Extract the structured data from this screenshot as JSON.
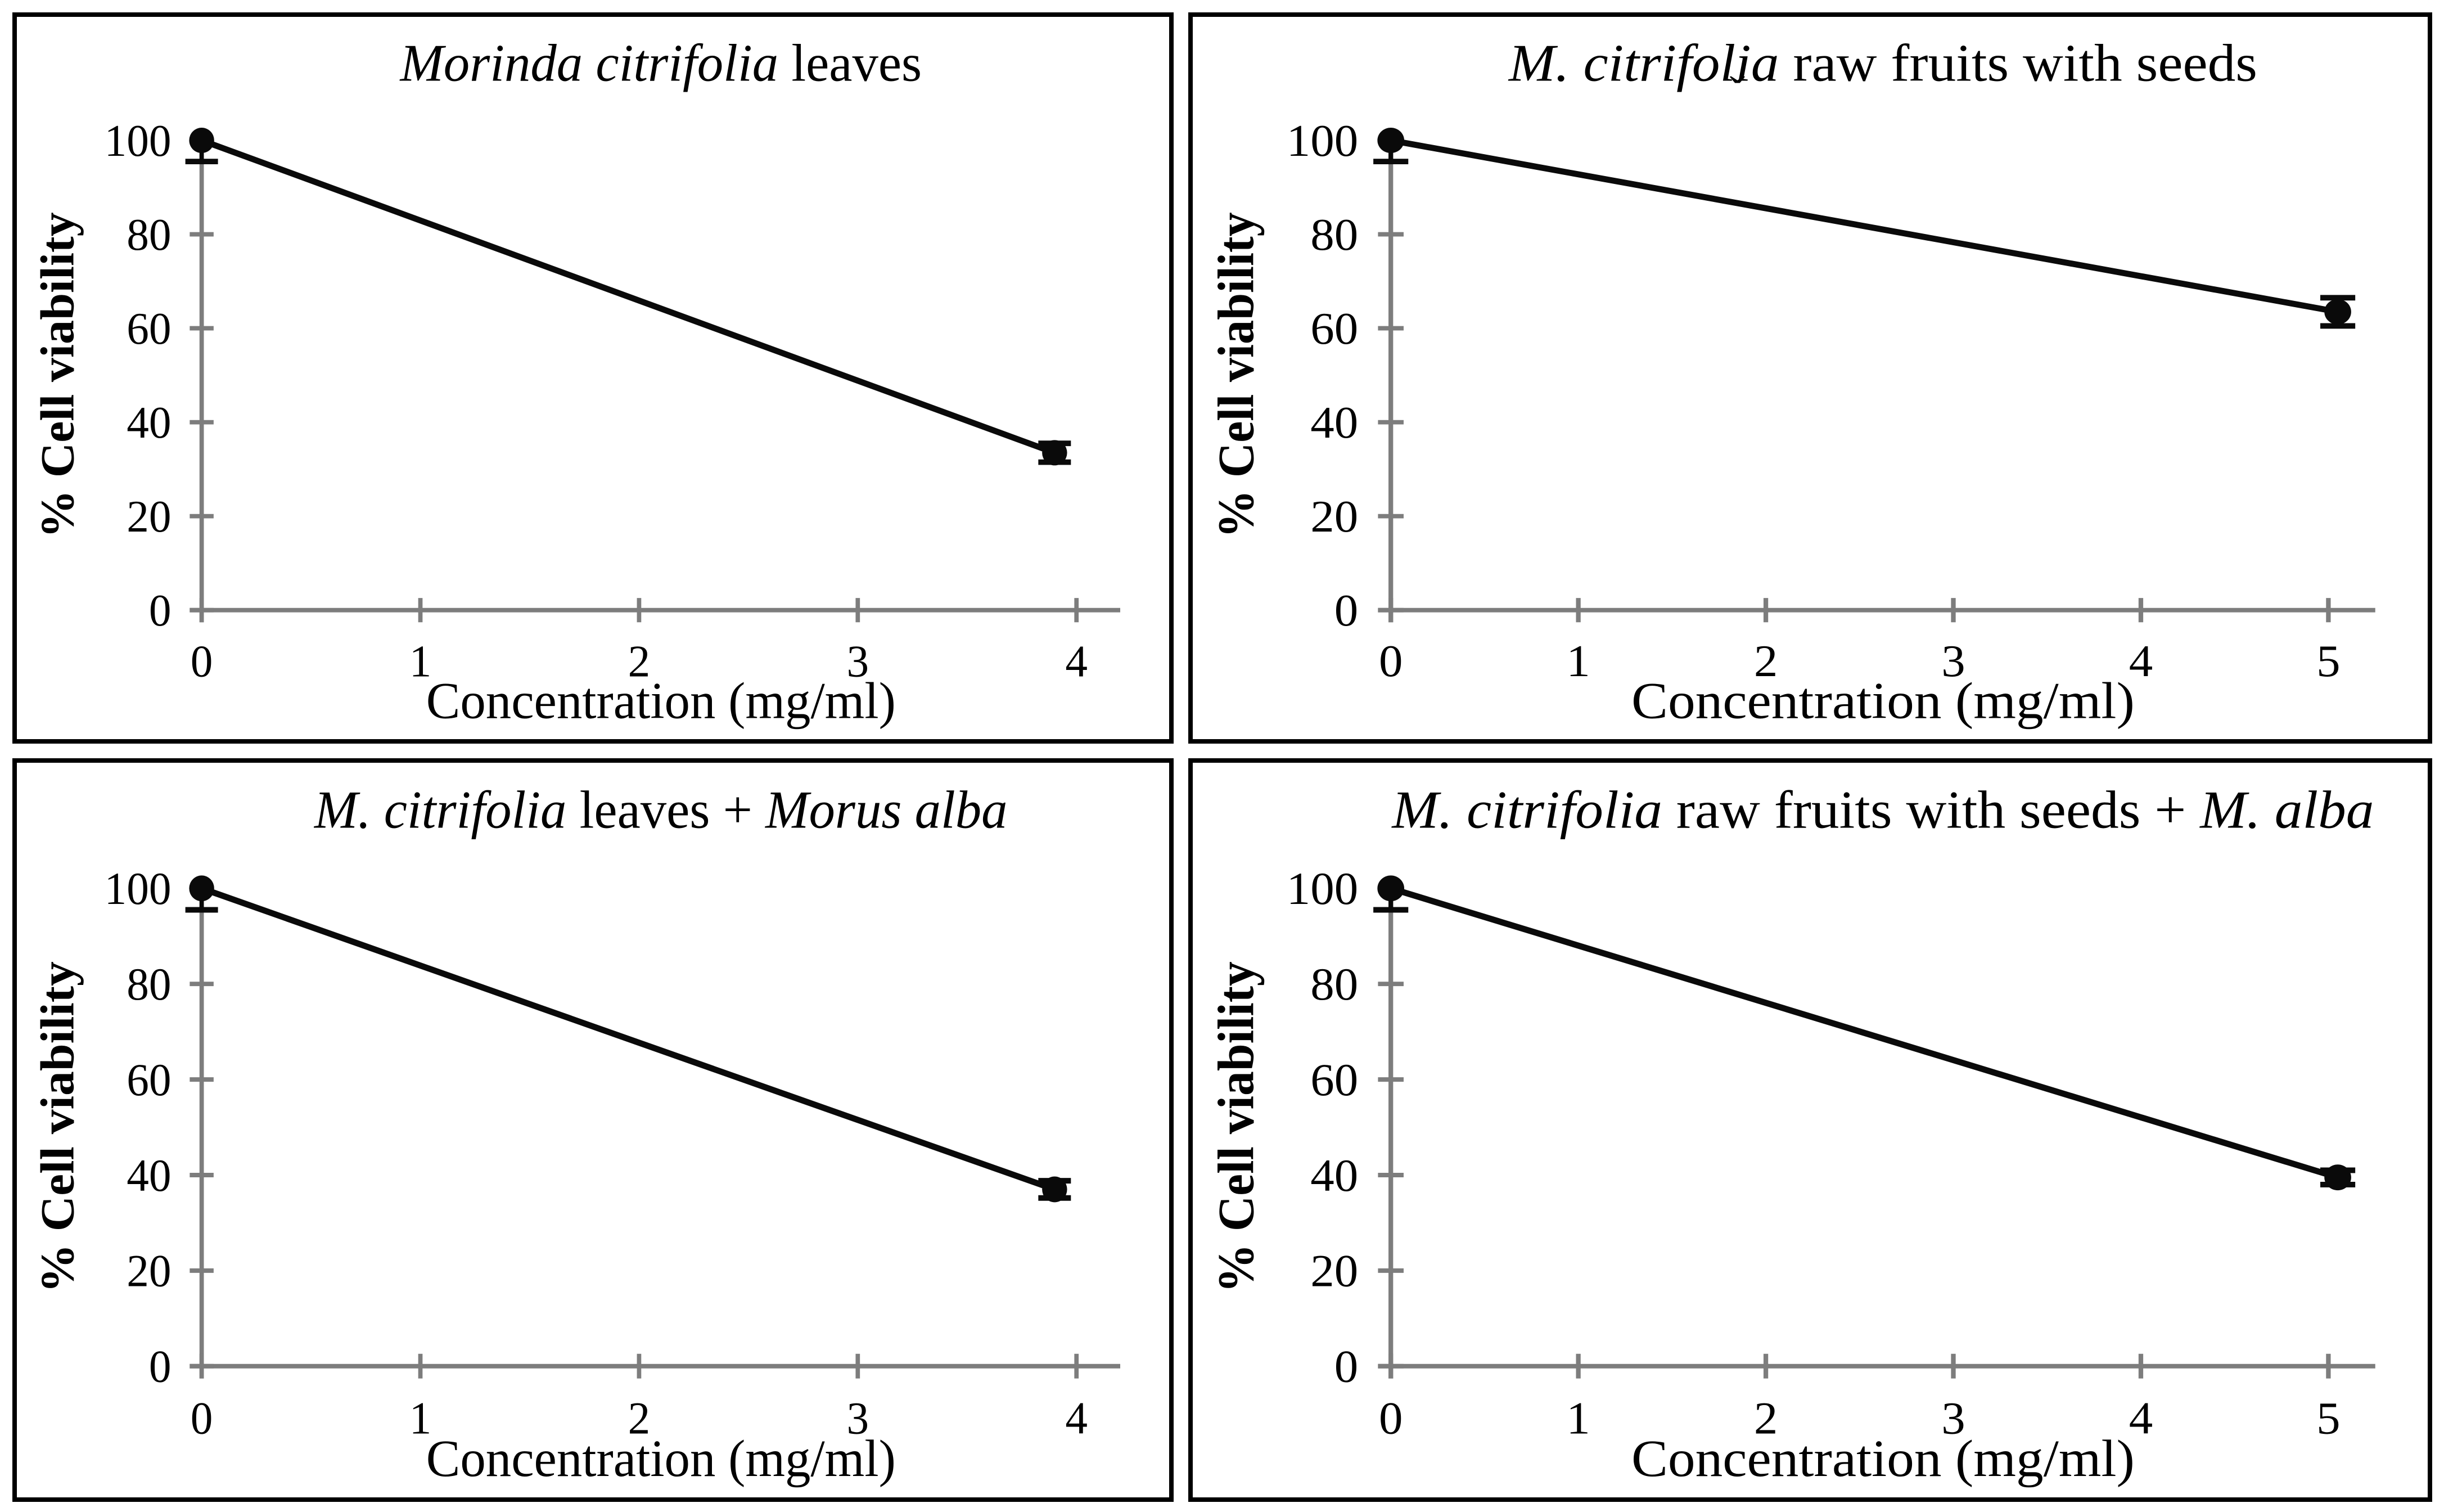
{
  "figure": {
    "background": "#ffffff",
    "panel_border_color": "#000000",
    "axis_color": "#7d7d7d",
    "data_color": "#0a0a0a",
    "text_color": "#000000",
    "layout": "2x2-grid"
  },
  "chart_data": [
    {
      "type": "line",
      "title_parts": [
        {
          "text": "Morinda citrifolia",
          "italic": true
        },
        {
          "text": " leaves",
          "italic": false
        }
      ],
      "xlabel": "Concentration (mg/ml)",
      "ylabel": "% Cell viability",
      "xlim": [
        0,
        4.2
      ],
      "ylim": [
        0,
        100
      ],
      "xticks": [
        0,
        1,
        2,
        3,
        4
      ],
      "yticks": [
        0,
        20,
        40,
        60,
        80,
        100
      ],
      "marker": "filled-circle",
      "grid": false,
      "legend": null,
      "annotations": [],
      "series": [
        {
          "name": "cell-viability",
          "points": [
            {
              "x": 0,
              "y": 100,
              "err_up": 0,
              "err_down": 4.5
            },
            {
              "x": 3.9,
              "y": 33.5,
              "err_up": 2,
              "err_down": 2
            }
          ]
        }
      ]
    },
    {
      "type": "line",
      "title_parts": [
        {
          "text": "M. citrifolia",
          "italic": true
        },
        {
          "text": " raw fruits with seeds",
          "italic": false
        }
      ],
      "xlabel": "Concentration (mg/ml)",
      "ylabel": "% Cell viability",
      "xlim": [
        0,
        5.25
      ],
      "ylim": [
        0,
        100
      ],
      "xticks": [
        0,
        1,
        2,
        3,
        4,
        5
      ],
      "yticks": [
        0,
        20,
        40,
        60,
        80,
        100
      ],
      "marker": "filled-circle",
      "grid": false,
      "legend": null,
      "annotations": [
        {
          "text": "ˇ",
          "fx": 0.441,
          "fy": 0.125
        }
      ],
      "series": [
        {
          "name": "cell-viability",
          "points": [
            {
              "x": 0,
              "y": 100,
              "err_up": 0,
              "err_down": 4.5
            },
            {
              "x": 5.05,
              "y": 63.5,
              "err_up": 3,
              "err_down": 3
            }
          ]
        }
      ]
    },
    {
      "type": "line",
      "title_parts": [
        {
          "text": "M. citrifolia",
          "italic": true
        },
        {
          "text": " leaves + ",
          "italic": false
        },
        {
          "text": "Morus alba",
          "italic": true
        }
      ],
      "xlabel": "Concentration (mg/ml)",
      "ylabel": "% Cell viability",
      "xlim": [
        0,
        4.2
      ],
      "ylim": [
        0,
        100
      ],
      "xticks": [
        0,
        1,
        2,
        3,
        4
      ],
      "yticks": [
        0,
        20,
        40,
        60,
        80,
        100
      ],
      "marker": "filled-circle",
      "grid": false,
      "legend": null,
      "annotations": [],
      "series": [
        {
          "name": "cell-viability",
          "points": [
            {
              "x": 0,
              "y": 100,
              "err_up": 0,
              "err_down": 4.5
            },
            {
              "x": 3.9,
              "y": 37,
              "err_up": 1.8,
              "err_down": 1.8
            }
          ]
        }
      ]
    },
    {
      "type": "line",
      "title_parts": [
        {
          "text": "M. citrifolia",
          "italic": true
        },
        {
          "text": " raw fruits with seeds + ",
          "italic": false
        },
        {
          "text": "M. alba",
          "italic": true
        }
      ],
      "xlabel": "Concentration (mg/ml)",
      "ylabel": "% Cell viability",
      "xlim": [
        0,
        5.25
      ],
      "ylim": [
        0,
        100
      ],
      "xticks": [
        0,
        1,
        2,
        3,
        4,
        5
      ],
      "yticks": [
        0,
        20,
        40,
        60,
        80,
        100
      ],
      "marker": "filled-circle",
      "grid": false,
      "legend": null,
      "annotations": [],
      "series": [
        {
          "name": "cell-viability",
          "points": [
            {
              "x": 0,
              "y": 100,
              "err_up": 0,
              "err_down": 4.5
            },
            {
              "x": 5.05,
              "y": 39.5,
              "err_up": 1.5,
              "err_down": 1.5
            }
          ]
        }
      ]
    }
  ]
}
